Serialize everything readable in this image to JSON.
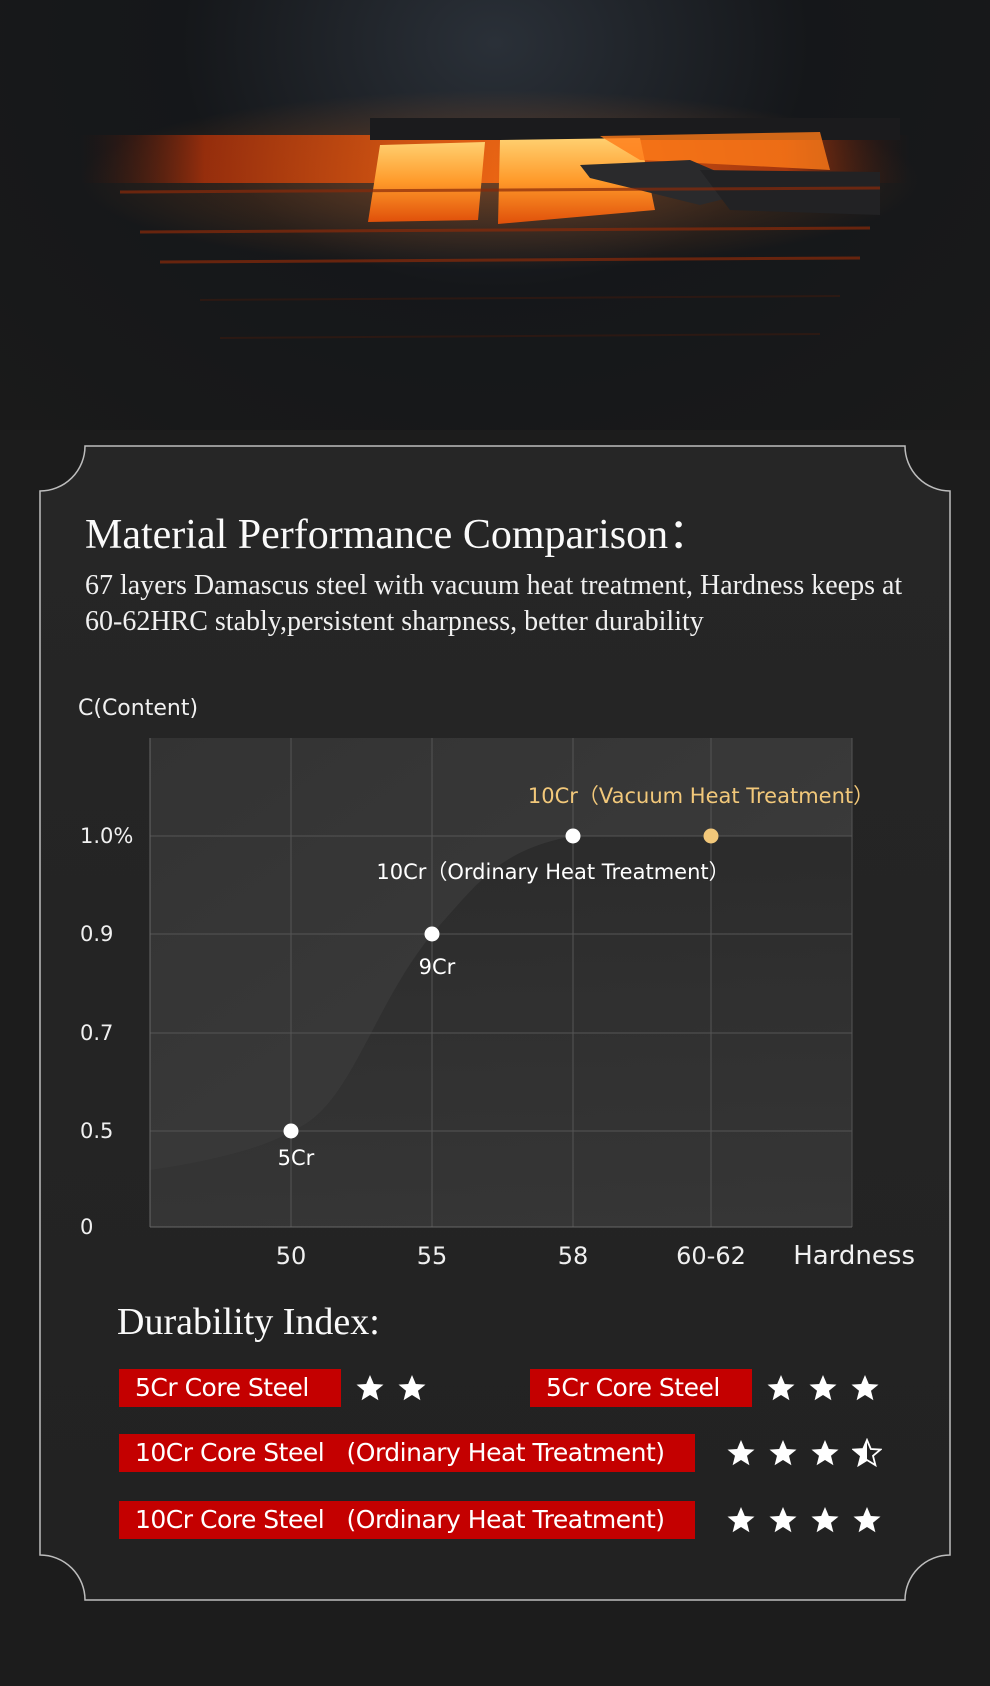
{
  "title": "Material Performance Comparison：",
  "subtitle": "67 layers Damascus steel with vacuum heat treatment, Hardness keeps at 60-62HRC stably,persistent sharpness, better durability",
  "chart_data": {
    "type": "line",
    "ylabel": "C(Content)",
    "xlabel": "Hardness",
    "x_categories": [
      "50",
      "55",
      "58",
      "60-62"
    ],
    "y_ticks": [
      "0",
      "0.5",
      "0.7",
      "0.9",
      "1.0%"
    ],
    "points": [
      {
        "label": "5Cr",
        "x": "50",
        "y": 0.5,
        "color": "#ffffff"
      },
      {
        "label": "9Cr",
        "x": "55",
        "y": 0.9,
        "color": "#ffffff"
      },
      {
        "label": "10Cr（Ordinary Heat Treatment）",
        "x": "58",
        "y": 1.0,
        "color": "#ffffff"
      },
      {
        "label": "10Cr（Vacuum Heat Treatment）",
        "x": "60-62",
        "y": 1.0,
        "color": "#f2c87a"
      }
    ],
    "highlight_color": "#f2c87a"
  },
  "durability": {
    "title": "Durability Index:",
    "rows": [
      {
        "label": "5Cr Core Steel",
        "stars": 2
      },
      {
        "label": "5Cr Core Steel",
        "stars": 3
      },
      {
        "label": "10Cr Core Steel   (Ordinary Heat Treatment)",
        "stars": 3.5
      },
      {
        "label": "10Cr Core Steel   (Ordinary Heat Treatment)",
        "stars": 4
      }
    ],
    "badge_color": "#c40000"
  }
}
